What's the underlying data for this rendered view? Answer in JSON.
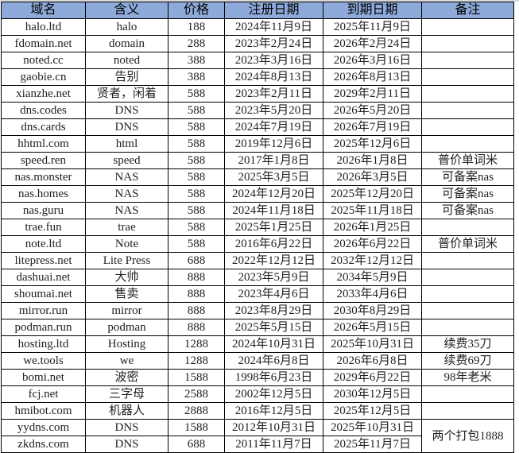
{
  "header_color": "#8eaadb",
  "columns": [
    "域名",
    "含义",
    "价格",
    "注册日期",
    "到期日期",
    "备注"
  ],
  "rows": [
    [
      "halo.ltd",
      "halo",
      "188",
      "2024年11月9日",
      "2025年11月9日",
      ""
    ],
    [
      "fdomain.net",
      "domain",
      "288",
      "2023年2月24日",
      "2026年2月24日",
      ""
    ],
    [
      "noted.cc",
      "noted",
      "388",
      "2023年3月16日",
      "2026年3月16日",
      ""
    ],
    [
      "gaobie.cn",
      "告别",
      "388",
      "2024年8月13日",
      "2026年8月13日",
      ""
    ],
    [
      "xianzhe.net",
      "贤者，闲着",
      "588",
      "2023年2月11日",
      "2029年2月11日",
      ""
    ],
    [
      "dns.codes",
      "DNS",
      "588",
      "2023年5月20日",
      "2026年5月20日",
      ""
    ],
    [
      "dns.cards",
      "DNS",
      "588",
      "2024年7月19日",
      "2026年7月19日",
      ""
    ],
    [
      "hhtml.com",
      "html",
      "588",
      "2019年12月6日",
      "2025年12月6日",
      ""
    ],
    [
      "speed.ren",
      "speed",
      "588",
      "2017年1月8日",
      "2026年1月8日",
      "普价单词米"
    ],
    [
      "nas.monster",
      "NAS",
      "588",
      "2025年3月5日",
      "2026年3月5日",
      "可备案nas"
    ],
    [
      "nas.homes",
      "NAS",
      "588",
      "2024年12月20日",
      "2025年12月20日",
      "可备案nas"
    ],
    [
      "nas.guru",
      "NAS",
      "588",
      "2024年11月18日",
      "2025年11月18日",
      "可备案nas"
    ],
    [
      "trae.fun",
      "trae",
      "588",
      "2025年1月25日",
      "2026年1月25日",
      ""
    ],
    [
      "note.ltd",
      "Note",
      "588",
      "2016年6月22日",
      "2026年6月22日",
      "普价单词米"
    ],
    [
      "litepress.net",
      "Lite Press",
      "688",
      "2022年12月12日",
      "2032年12月12日",
      ""
    ],
    [
      "dashuai.net",
      "大帅",
      "888",
      "2023年5月9日",
      "2034年5月9日",
      ""
    ],
    [
      "shoumai.net",
      "售卖",
      "888",
      "2023年4月6日",
      "2033年4月6日",
      ""
    ],
    [
      "mirror.run",
      "mirror",
      "888",
      "2023年8月29日",
      "2030年8月29日",
      ""
    ],
    [
      "podman.run",
      "podman",
      "888",
      "2025年5月15日",
      "2026年5月15日",
      ""
    ],
    [
      "hosting.ltd",
      "Hosting",
      "1288",
      "2024年10月31日",
      "2025年10月31日",
      "续费35刀"
    ],
    [
      "we.tools",
      "we",
      "1288",
      "2024年6月8日",
      "2026年6月8日",
      "续费69刀"
    ],
    [
      "bomi.net",
      "波密",
      "1588",
      "1998年6月23日",
      "2029年6月22日",
      "98年老米"
    ],
    [
      "fcj.net",
      "三字母",
      "2588",
      "2002年12月5日",
      "2030年12月5日",
      ""
    ],
    [
      "hmibot.com",
      "机器人",
      "2888",
      "2016年12月5日",
      "2025年12月5日",
      ""
    ],
    [
      "yydns.com",
      "DNS",
      "1588",
      "2012年10月31日",
      "2025年10月31日",
      "两个打包1888"
    ],
    [
      "zkdns.com",
      "DNS",
      "688",
      "2011年11月7日",
      "2025年11月7日",
      null
    ]
  ]
}
